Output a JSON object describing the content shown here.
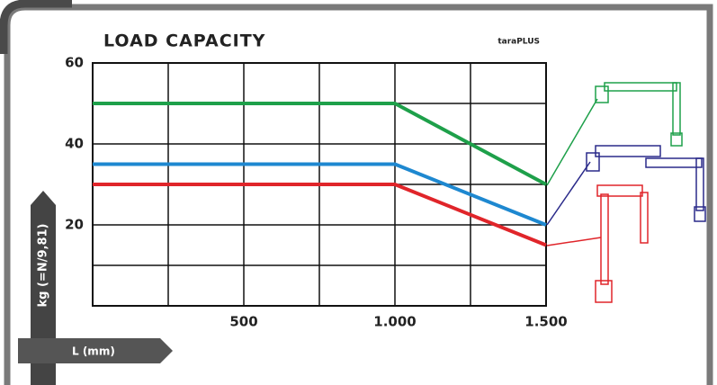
{
  "chart_data": {
    "type": "line",
    "title": "LOAD CAPACITY",
    "subtitle": "taraPLUS",
    "y_label": "kg (=N/9,81)",
    "x_label": "L (mm)",
    "x": [
      0,
      1000,
      1500
    ],
    "series": [
      {
        "color": "#1ea04a",
        "values": [
          50,
          50,
          30
        ]
      },
      {
        "color": "#1e88d0",
        "values": [
          35,
          35,
          20
        ]
      },
      {
        "color": "#e0252a",
        "values": [
          30,
          30,
          15
        ]
      }
    ],
    "xlim": [
      0,
      1500
    ],
    "ylim": [
      0,
      60
    ],
    "xticks": [
      500,
      {
        "value": 1000,
        "label": "1.000"
      },
      {
        "value": 1500,
        "label": "1.500"
      }
    ],
    "yticks": [
      20,
      40,
      60
    ],
    "xgrid": [
      250,
      500,
      750,
      1000,
      1250
    ],
    "ygrid": [
      10,
      20,
      30,
      40,
      50
    ],
    "grid": true
  }
}
